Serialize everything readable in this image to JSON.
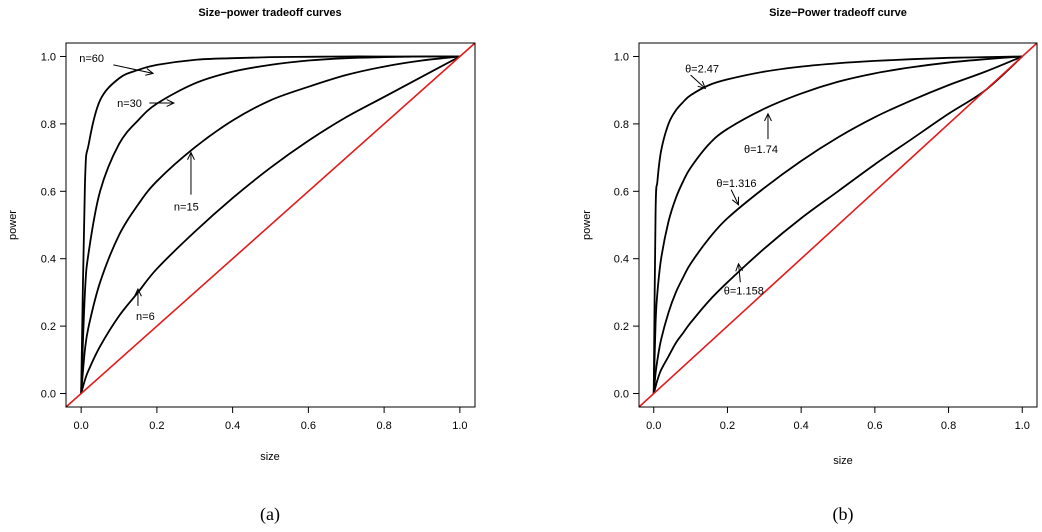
{
  "chart_data": [
    {
      "type": "line",
      "title": "Size−power tradeoff curves",
      "xlabel": "size",
      "ylabel": "power",
      "caption": "(a)",
      "xlim": [
        -0.04,
        1.04
      ],
      "ylim": [
        -0.04,
        1.04
      ],
      "xticks": [
        "0.0",
        "0.2",
        "0.4",
        "0.6",
        "0.8",
        "1.0"
      ],
      "yticks": [
        "0.0",
        "0.2",
        "0.4",
        "0.6",
        "0.8",
        "1.0"
      ],
      "grid": false,
      "line_color": "#000000",
      "diagonal_color": "#e41a1c",
      "series": [
        {
          "x": [
            0,
            0.01,
            0.02,
            0.05,
            0.1,
            0.15,
            0.2,
            0.3,
            0.4,
            0.5,
            0.6,
            0.7,
            0.8,
            0.9,
            1.0
          ],
          "y": [
            0,
            0.62,
            0.74,
            0.87,
            0.935,
            0.96,
            0.975,
            0.99,
            0.995,
            0.998,
            0.999,
            1.0,
            1.0,
            1.0,
            1.0
          ]
        },
        {
          "x": [
            0,
            0.01,
            0.02,
            0.05,
            0.1,
            0.15,
            0.2,
            0.3,
            0.4,
            0.5,
            0.6,
            0.7,
            0.8,
            0.9,
            1.0
          ],
          "y": [
            0,
            0.3,
            0.42,
            0.6,
            0.74,
            0.81,
            0.86,
            0.92,
            0.955,
            0.975,
            0.988,
            0.995,
            0.998,
            1.0,
            1.0
          ]
        },
        {
          "x": [
            0,
            0.01,
            0.02,
            0.05,
            0.1,
            0.15,
            0.2,
            0.3,
            0.4,
            0.5,
            0.6,
            0.7,
            0.8,
            0.9,
            1.0
          ],
          "y": [
            0,
            0.13,
            0.2,
            0.33,
            0.47,
            0.56,
            0.63,
            0.73,
            0.81,
            0.87,
            0.91,
            0.945,
            0.97,
            0.988,
            1.0
          ]
        },
        {
          "x": [
            0,
            0.01,
            0.02,
            0.05,
            0.1,
            0.15,
            0.2,
            0.3,
            0.4,
            0.5,
            0.6,
            0.7,
            0.8,
            0.9,
            1.0
          ],
          "y": [
            0,
            0.04,
            0.07,
            0.14,
            0.23,
            0.3,
            0.37,
            0.48,
            0.58,
            0.67,
            0.75,
            0.82,
            0.88,
            0.94,
            1.0
          ]
        },
        {
          "role": "diagonal",
          "x": [
            -0.04,
            1.04
          ],
          "y": [
            -0.04,
            1.04
          ]
        }
      ],
      "annotations": [
        {
          "text": "n=60",
          "tx": -0.005,
          "ty": 0.995,
          "ax0": 0.085,
          "ay0": 0.975,
          "ax1": 0.19,
          "ay1": 0.95
        },
        {
          "text": "n=30",
          "tx": 0.095,
          "ty": 0.862,
          "ax0": 0.18,
          "ay0": 0.862,
          "ax1": 0.245,
          "ay1": 0.862
        },
        {
          "text": "n=15",
          "tx": 0.245,
          "ty": 0.555,
          "ax0": 0.29,
          "ay0": 0.59,
          "ax1": 0.29,
          "ay1": 0.715
        },
        {
          "text": "n=6",
          "tx": 0.145,
          "ty": 0.23,
          "ax0": 0.15,
          "ay0": 0.26,
          "ax1": 0.15,
          "ay1": 0.31
        }
      ]
    },
    {
      "type": "line",
      "title": "Size−Power tradeoff curve",
      "xlabel": "size",
      "ylabel": "power",
      "caption": "(b)",
      "xlim": [
        -0.04,
        1.04
      ],
      "ylim": [
        -0.04,
        1.04
      ],
      "xticks": [
        "0.0",
        "0.2",
        "0.4",
        "0.6",
        "0.8",
        "1.0"
      ],
      "yticks": [
        "0.0",
        "0.2",
        "0.4",
        "0.6",
        "0.8",
        "1.0"
      ],
      "grid": false,
      "line_color": "#000000",
      "diagonal_color": "#e41a1c",
      "series": [
        {
          "x": [
            0,
            0.005,
            0.01,
            0.02,
            0.04,
            0.06,
            0.08,
            0.1,
            0.15,
            0.2,
            0.3,
            0.4,
            0.5,
            0.6,
            0.7,
            0.8,
            0.9,
            1.0
          ],
          "y": [
            0,
            0.54,
            0.63,
            0.72,
            0.8,
            0.84,
            0.865,
            0.885,
            0.915,
            0.932,
            0.955,
            0.97,
            0.98,
            0.987,
            0.992,
            0.996,
            0.998,
            1.0
          ]
        },
        {
          "x": [
            0,
            0.005,
            0.01,
            0.02,
            0.04,
            0.06,
            0.08,
            0.1,
            0.15,
            0.2,
            0.3,
            0.4,
            0.5,
            0.6,
            0.7,
            0.8,
            0.9,
            1.0
          ],
          "y": [
            0,
            0.21,
            0.3,
            0.4,
            0.51,
            0.58,
            0.63,
            0.67,
            0.74,
            0.785,
            0.845,
            0.89,
            0.925,
            0.95,
            0.968,
            0.982,
            0.992,
            1.0
          ]
        },
        {
          "x": [
            0,
            0.005,
            0.01,
            0.02,
            0.04,
            0.06,
            0.08,
            0.1,
            0.15,
            0.2,
            0.3,
            0.4,
            0.5,
            0.6,
            0.7,
            0.8,
            0.9,
            1.0
          ],
          "y": [
            0,
            0.06,
            0.1,
            0.16,
            0.24,
            0.3,
            0.345,
            0.385,
            0.46,
            0.52,
            0.61,
            0.69,
            0.76,
            0.82,
            0.87,
            0.915,
            0.955,
            1.0
          ]
        },
        {
          "x": [
            0,
            0.005,
            0.01,
            0.02,
            0.04,
            0.06,
            0.08,
            0.1,
            0.15,
            0.2,
            0.3,
            0.4,
            0.5,
            0.6,
            0.7,
            0.8,
            0.9,
            1.0
          ],
          "y": [
            0,
            0.02,
            0.04,
            0.07,
            0.11,
            0.15,
            0.18,
            0.21,
            0.275,
            0.33,
            0.43,
            0.52,
            0.6,
            0.68,
            0.755,
            0.83,
            0.9,
            1.0
          ]
        },
        {
          "role": "diagonal",
          "x": [
            -0.04,
            1.04
          ],
          "y": [
            -0.04,
            1.04
          ]
        }
      ],
      "annotations": [
        {
          "text": "θ=2.47",
          "tx": 0.085,
          "ty": 0.965,
          "ax0": 0.1,
          "ay0": 0.945,
          "ax1": 0.14,
          "ay1": 0.905
        },
        {
          "text": "θ=1.74",
          "tx": 0.245,
          "ty": 0.725,
          "ax0": 0.31,
          "ay0": 0.755,
          "ax1": 0.31,
          "ay1": 0.83
        },
        {
          "text": "θ=1.316",
          "tx": 0.17,
          "ty": 0.625,
          "ax0": 0.21,
          "ay0": 0.605,
          "ax1": 0.23,
          "ay1": 0.56
        },
        {
          "text": "θ=1.158",
          "tx": 0.19,
          "ty": 0.305,
          "ax0": 0.235,
          "ay0": 0.33,
          "ax1": 0.23,
          "ay1": 0.385
        }
      ]
    }
  ]
}
